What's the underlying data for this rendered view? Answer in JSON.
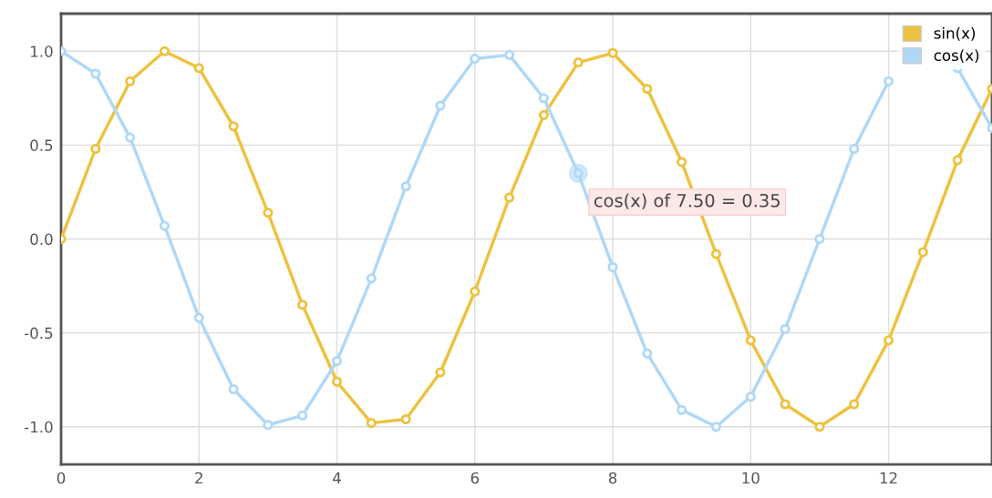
{
  "chart_data": {
    "type": "line",
    "x": [
      0,
      0.5,
      1,
      1.5,
      2,
      2.5,
      3,
      3.5,
      4,
      4.5,
      5,
      5.5,
      6,
      6.5,
      7,
      7.5,
      8,
      8.5,
      9,
      9.5,
      10,
      10.5,
      11,
      11.5,
      12,
      12.5,
      13,
      13.5
    ],
    "series": [
      {
        "name": "sin(x)",
        "color": "#edc240",
        "values": [
          0,
          0.48,
          0.84,
          1.0,
          0.91,
          0.6,
          0.14,
          -0.35,
          -0.76,
          -0.98,
          -0.96,
          -0.71,
          -0.28,
          0.22,
          0.66,
          0.94,
          0.99,
          0.8,
          0.41,
          -0.08,
          -0.54,
          -0.88,
          -1.0,
          -0.88,
          -0.54,
          -0.07,
          0.42,
          0.8
        ]
      },
      {
        "name": "cos(x)",
        "color": "#afd8f8",
        "values": [
          1.0,
          0.88,
          0.54,
          0.07,
          -0.42,
          -0.8,
          -0.99,
          -0.94,
          -0.65,
          -0.21,
          0.28,
          0.71,
          0.96,
          0.98,
          0.75,
          0.35,
          -0.15,
          -0.61,
          -0.91,
          -1.0,
          -0.84,
          -0.48,
          0.0,
          0.48,
          0.84,
          null,
          0.91,
          0.59
        ]
      }
    ],
    "xlim": [
      0,
      13.5
    ],
    "ylim": [
      -1.2,
      1.2
    ],
    "xticks": [
      0,
      2,
      4,
      6,
      8,
      10,
      12
    ],
    "yticks": [
      {
        "value": -1,
        "label": "-1.0"
      },
      {
        "value": -0.5,
        "label": "-0.5"
      },
      {
        "value": 0,
        "label": "0.0"
      },
      {
        "value": 0.5,
        "label": "0.5"
      },
      {
        "value": 1,
        "label": "1.0"
      }
    ],
    "annotations": [
      {
        "text": "cos(x) of 7.50 = 0.35",
        "x": 7.5,
        "y": 0.35
      }
    ],
    "grid": true,
    "legend": "top right",
    "marker": "circle",
    "line_style": "solid"
  }
}
